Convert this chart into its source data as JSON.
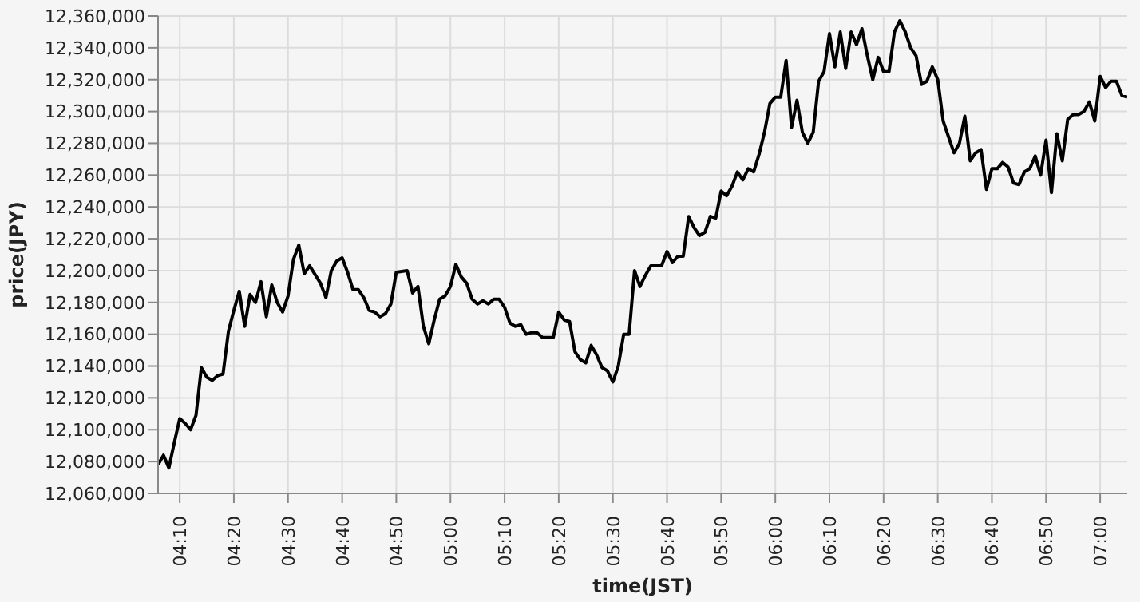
{
  "chart_data": {
    "type": "line",
    "xlabel": "time(JST)",
    "ylabel": "price(JPY)",
    "grid": true,
    "legend": false,
    "marker": "none",
    "line_style": "solid",
    "x": [
      4.1,
      4.1167,
      4.1333,
      4.15,
      4.1667,
      4.1833,
      4.2,
      4.2167,
      4.2333,
      4.25,
      4.2667,
      4.2833,
      4.3,
      4.3167,
      4.3333,
      4.35,
      4.3667,
      4.3833,
      4.4,
      4.4167,
      4.4333,
      4.45,
      4.4667,
      4.4833,
      4.5,
      4.5167,
      4.5333,
      4.55,
      4.5667,
      4.6,
      4.6167,
      4.6333,
      4.65,
      4.6667,
      4.6833,
      4.7,
      4.7167,
      4.7333,
      4.75,
      4.7667,
      4.7833,
      4.8,
      4.8167,
      4.8333,
      4.8667,
      4.8833,
      4.9,
      4.9167,
      4.9333,
      4.95,
      4.9667,
      4.9833,
      5,
      5.0167,
      5.0333,
      5.05,
      5.0667,
      5.0833,
      5.1,
      5.1167,
      5.1333,
      5.15,
      5.1667,
      5.1833,
      5.2,
      5.2167,
      5.2333,
      5.25,
      5.2667,
      5.2833,
      5.3167,
      5.3333,
      5.35,
      5.3667,
      5.3833,
      5.4,
      5.4167,
      5.4333,
      5.45,
      5.4667,
      5.4833,
      5.5,
      5.5167,
      5.5333,
      5.55,
      5.5667,
      5.5833,
      5.6,
      5.6167,
      5.6333,
      5.65,
      5.6667,
      5.6833,
      5.7,
      5.7167,
      5.7333,
      5.75,
      5.7667,
      5.7833,
      5.8,
      5.8167,
      5.8333,
      5.85,
      5.8667,
      5.8833,
      5.9,
      5.9167,
      5.9333,
      5.95,
      5.9667,
      5.9833,
      6,
      6.0167,
      6.0333,
      6.05,
      6.0667,
      6.0833,
      6.1,
      6.1167,
      6.1333,
      6.15,
      6.1667,
      6.1833,
      6.2,
      6.2167,
      6.2333,
      6.25,
      6.2667,
      6.2833,
      6.3,
      6.3167,
      6.3333,
      6.35,
      6.3667,
      6.3833,
      6.4,
      6.4167,
      6.4333,
      6.45,
      6.4667,
      6.4833,
      6.5,
      6.5167,
      6.5333,
      6.55,
      6.5667,
      6.5833,
      6.6,
      6.6167,
      6.6333,
      6.65,
      6.6667,
      6.6833,
      6.7,
      6.7167,
      6.7333,
      6.75,
      6.7667,
      6.7833,
      6.8,
      6.8167,
      6.8333,
      6.85,
      6.8667,
      6.8833,
      6.9,
      6.9167,
      6.9333,
      6.95,
      6.9667,
      6.9833,
      7,
      7.0167,
      7.0333,
      7.05,
      7.0667,
      7.0833
    ],
    "series": [
      {
        "color": "#000000",
        "values": [
          12078000,
          12084000,
          12076000,
          12092000,
          12107000,
          12104000,
          12100000,
          12109000,
          12139000,
          12133000,
          12131000,
          12134000,
          12135000,
          12162000,
          12175000,
          12187000,
          12165000,
          12185000,
          12180000,
          12193000,
          12171000,
          12191000,
          12180000,
          12174000,
          12184000,
          12207000,
          12216000,
          12198000,
          12203000,
          12192000,
          12183000,
          12200000,
          12206000,
          12208000,
          12199000,
          12188000,
          12188000,
          12183000,
          12175000,
          12174000,
          12171000,
          12173000,
          12179000,
          12199000,
          12200000,
          12186000,
          12190000,
          12165000,
          12154000,
          12169000,
          12182000,
          12184000,
          12190000,
          12204000,
          12196000,
          12192000,
          12182000,
          12179000,
          12181000,
          12179000,
          12182000,
          12182000,
          12177000,
          12167000,
          12165000,
          12166000,
          12160000,
          12161000,
          12161000,
          12158000,
          12158000,
          12174000,
          12169000,
          12168000,
          12149000,
          12144000,
          12142000,
          12153000,
          12147000,
          12139000,
          12137000,
          12130000,
          12140000,
          12160000,
          12160000,
          12200000,
          12190000,
          12197000,
          12203000,
          12203000,
          12203000,
          12212000,
          12205000,
          12209000,
          12209000,
          12234000,
          12227000,
          12222000,
          12224000,
          12234000,
          12233000,
          12250000,
          12247000,
          12253000,
          12262000,
          12257000,
          12264000,
          12262000,
          12273000,
          12287000,
          12305000,
          12309000,
          12309000,
          12332000,
          12290000,
          12307000,
          12287000,
          12280000,
          12287000,
          12319000,
          12325000,
          12349000,
          12328000,
          12350000,
          12327000,
          12350000,
          12342000,
          12352000,
          12335000,
          12320000,
          12334000,
          12325000,
          12325000,
          12350000,
          12357000,
          12350000,
          12340000,
          12335000,
          12317000,
          12319000,
          12328000,
          12320000,
          12294000,
          12284000,
          12274000,
          12280000,
          12297000,
          12269000,
          12274000,
          12276000,
          12251000,
          12264000,
          12264000,
          12268000,
          12265000,
          12255000,
          12254000,
          12262000,
          12264000,
          12272000,
          12260000,
          12282000,
          12249000,
          12286000,
          12269000,
          12295000,
          12298000,
          12298000,
          12300000,
          12306000,
          12294000,
          12322000,
          12315000,
          12319000,
          12319000,
          12310000,
          12309000
        ]
      }
    ],
    "xlim": [
      4.1,
      7.0833
    ],
    "xticks": [
      {
        "value": 4.1667,
        "label": "04:10"
      },
      {
        "value": 4.3333,
        "label": "04:20"
      },
      {
        "value": 4.5,
        "label": "04:30"
      },
      {
        "value": 4.6667,
        "label": "04:40"
      },
      {
        "value": 4.8333,
        "label": "04:50"
      },
      {
        "value": 5,
        "label": "05:00"
      },
      {
        "value": 5.1667,
        "label": "05:10"
      },
      {
        "value": 5.3333,
        "label": "05:20"
      },
      {
        "value": 5.5,
        "label": "05:30"
      },
      {
        "value": 5.6667,
        "label": "05:40"
      },
      {
        "value": 5.8333,
        "label": "05:50"
      },
      {
        "value": 6,
        "label": "06:00"
      },
      {
        "value": 6.1667,
        "label": "06:10"
      },
      {
        "value": 6.3333,
        "label": "06:20"
      },
      {
        "value": 6.5,
        "label": "06:30"
      },
      {
        "value": 6.6667,
        "label": "06:40"
      },
      {
        "value": 6.8333,
        "label": "06:50"
      },
      {
        "value": 7,
        "label": "07:00"
      }
    ],
    "ylim": [
      12060000,
      12360000
    ],
    "yticks": [
      {
        "value": 12060000,
        "label": "12,060,000"
      },
      {
        "value": 12080000,
        "label": "12,080,000"
      },
      {
        "value": 12100000,
        "label": "12,100,000"
      },
      {
        "value": 12120000,
        "label": "12,120,000"
      },
      {
        "value": 12140000,
        "label": "12,140,000"
      },
      {
        "value": 12160000,
        "label": "12,160,000"
      },
      {
        "value": 12180000,
        "label": "12,180,000"
      },
      {
        "value": 12200000,
        "label": "12,200,000"
      },
      {
        "value": 12220000,
        "label": "12,220,000"
      },
      {
        "value": 12240000,
        "label": "12,240,000"
      },
      {
        "value": 12260000,
        "label": "12,260,000"
      },
      {
        "value": 12280000,
        "label": "12,280,000"
      },
      {
        "value": 12300000,
        "label": "12,300,000"
      },
      {
        "value": 12320000,
        "label": "12,320,000"
      },
      {
        "value": 12340000,
        "label": "12,340,000"
      },
      {
        "value": 12360000,
        "label": "12,360,000"
      }
    ]
  }
}
